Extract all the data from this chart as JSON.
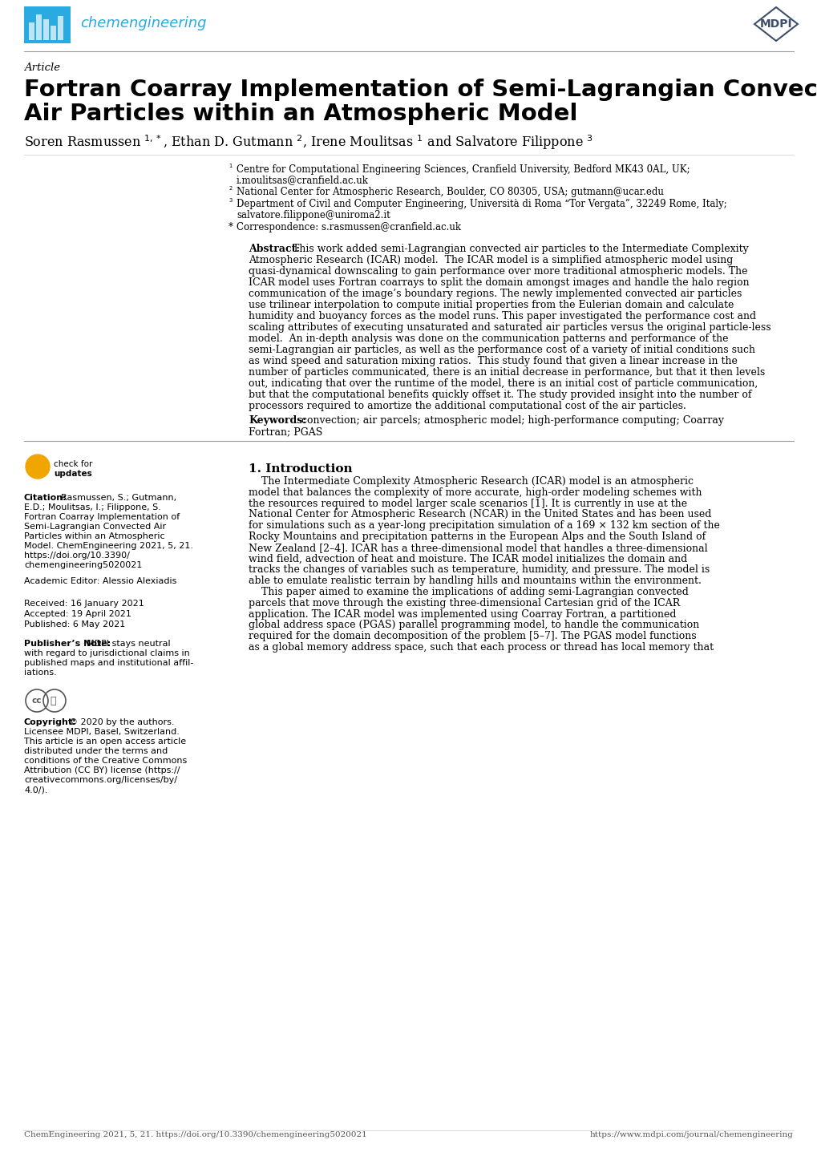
{
  "title_article": "Article",
  "journal_name": "chemengineering",
  "title_line1": "Fortran Coarray Implementation of Semi-Lagrangian Convected",
  "title_line2": "Air Particles within an Atmospheric Model",
  "authors": "Soren Rasmussen $^{1,*}$, Ethan D. Gutmann $^{2}$, Irene Moulitsas $^{1}$ and Salvatore Filippone $^{3}$",
  "affil1_num": "1",
  "affil1_text": "Centre for Computational Engineering Sciences, Cranfield University, Bedford MK43 0AL, UK;",
  "affil1_email": "i.moulitsas@cranfield.ac.uk",
  "affil2_num": "2",
  "affil2_text": "National Center for Atmospheric Research, Boulder, CO 80305, USA; gutmann@ucar.edu",
  "affil3_num": "3",
  "affil3_text": "Department of Civil and Computer Engineering, Università di Roma “Tor Vergata”, 32249 Rome, Italy;",
  "affil3_email": "salvatore.filippone@uniroma2.it",
  "affil_corr": "Correspondence: s.rasmussen@cranfield.ac.uk",
  "abstract_label": "Abstract:",
  "abstract_line0": "This work added semi-Lagrangian convected air particles to the Intermediate Complexity",
  "abstract_lines": [
    "Atmospheric Research (ICAR) model.  The ICAR model is a simplified atmospheric model using",
    "quasi-dynamical downscaling to gain performance over more traditional atmospheric models. The",
    "ICAR model uses Fortran coarrays to split the domain amongst images and handle the halo region",
    "communication of the image’s boundary regions. The newly implemented convected air particles",
    "use trilinear interpolation to compute initial properties from the Eulerian domain and calculate",
    "humidity and buoyancy forces as the model runs. This paper investigated the performance cost and",
    "scaling attributes of executing unsaturated and saturated air particles versus the original particle-less",
    "model.  An in-depth analysis was done on the communication patterns and performance of the",
    "semi-Lagrangian air particles, as well as the performance cost of a variety of initial conditions such",
    "as wind speed and saturation mixing ratios.  This study found that given a linear increase in the",
    "number of particles communicated, there is an initial decrease in performance, but that it then levels",
    "out, indicating that over the runtime of the model, there is an initial cost of particle communication,",
    "but that the computational benefits quickly offset it. The study provided insight into the number of",
    "processors required to amortize the additional computational cost of the air particles."
  ],
  "keywords_label": "Keywords:",
  "keywords_line1": " convection; air parcels; atmospheric model; high-performance computing; Coarray",
  "keywords_line2": "Fortran; PGAS",
  "citation_label": "Citation:",
  "citation_line0": "Rasmussen, S.; Gutmann,",
  "citation_lines": [
    "E.D.; Moulitsas, I.; Filippone, S.",
    "Fortran Coarray Implementation of",
    "Semi-Lagrangian Convected Air",
    "Particles within an Atmospheric",
    "Model. ChemEngineering 2021, 5, 21.",
    "https://doi.org/10.3390/",
    "chemengineering5020021"
  ],
  "academic_editor": "Academic Editor: Alessio Alexiadis",
  "received": "Received: 16 January 2021",
  "accepted": "Accepted: 19 April 2021",
  "published": "Published: 6 May 2021",
  "publisher_label": "Publisher’s Note:",
  "publisher_line0": "MDPI stays neutral",
  "publisher_lines": [
    "with regard to jurisdictional claims in",
    "published maps and institutional affil-",
    "iations."
  ],
  "copyright_label": "Copyright:",
  "copyright_line0": "© 2020 by the authors.",
  "copyright_lines": [
    "Licensee MDPI, Basel, Switzerland.",
    "This article is an open access article",
    "distributed under the terms and",
    "conditions of the Creative Commons",
    "Attribution (CC BY) license (https://",
    "creativecommons.org/licenses/by/",
    "4.0/)."
  ],
  "section1_title": "1. Introduction",
  "intro_lines": [
    "    The Intermediate Complexity Atmospheric Research (ICAR) model is an atmospheric",
    "model that balances the complexity of more accurate, high-order modeling schemes with",
    "the resources required to model larger scale scenarios [1]. It is currently in use at the",
    "National Center for Atmospheric Research (NCAR) in the United States and has been used",
    "for simulations such as a year-long precipitation simulation of a 169 × 132 km section of the",
    "Rocky Mountains and precipitation patterns in the European Alps and the South Island of",
    "New Zealand [2–4]. ICAR has a three-dimensional model that handles a three-dimensional",
    "wind field, advection of heat and moisture. The ICAR model initializes the domain and",
    "tracks the changes of variables such as temperature, humidity, and pressure. The model is",
    "able to emulate realistic terrain by handling hills and mountains within the environment.",
    "    This paper aimed to examine the implications of adding semi-Lagrangian convected",
    "parcels that move through the existing three-dimensional Cartesian grid of the ICAR",
    "application. The ICAR model was implemented using Coarray Fortran, a partitioned",
    "global address space (PGAS) parallel programming model, to handle the communication",
    "required for the domain decomposition of the problem [5–7]. The PGAS model functions",
    "as a global memory address space, such that each process or thread has local memory that"
  ],
  "footer_left": "ChemEngineering 2021, 5, 21. https://doi.org/10.3390/chemengineering5020021",
  "footer_right": "https://www.mdpi.com/journal/chemengineering",
  "header_color": "#29AAE1",
  "mdpi_color": "#3d4f6b",
  "text_color": "#000000",
  "gray_line": "#999999",
  "light_line": "#cccccc",
  "bg_color": "#ffffff"
}
